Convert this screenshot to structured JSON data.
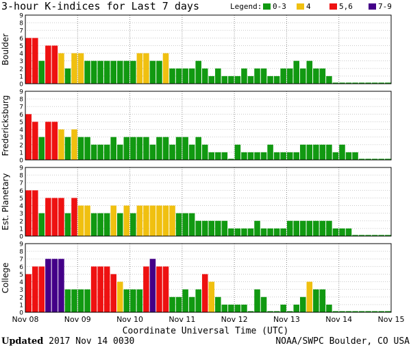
{
  "page": {
    "title": "3-hour K-indices for Last 7 days",
    "legend": {
      "label": "Legend:",
      "items": [
        {
          "label": "0-3",
          "color": "#119911"
        },
        {
          "label": "4",
          "color": "#f0c010"
        },
        {
          "label": "5,6",
          "color": "#ee1111"
        },
        {
          "label": "7-9",
          "color": "#440088"
        }
      ]
    },
    "footer": {
      "updated_label": "Updated",
      "updated_value": "2017 Nov 14 0030",
      "credit": "NOAA/SWPC Boulder, CO USA"
    }
  },
  "chart_data": {
    "type": "bar",
    "title": "3-hour K-indices for Last 7 days",
    "xlabel": "Coordinate Universal Time (UTC)",
    "x_ticks": [
      "Nov 08",
      "Nov 09",
      "Nov 10",
      "Nov 11",
      "Nov 12",
      "Nov 13",
      "Nov 14",
      "Nov 15"
    ],
    "ylim": [
      0,
      9
    ],
    "y_ticks": [
      0,
      1,
      2,
      3,
      4,
      5,
      6,
      7,
      8,
      9
    ],
    "interval_hours": 3,
    "color_scale": [
      {
        "range": "0-3",
        "color": "#119911"
      },
      {
        "range": "4",
        "color": "#f0c010"
      },
      {
        "range": "5,6",
        "color": "#ee1111"
      },
      {
        "range": "7-9",
        "color": "#440088"
      }
    ],
    "series": [
      {
        "name": "Boulder",
        "values": [
          6,
          6,
          3,
          5,
          5,
          4,
          2,
          4,
          4,
          3,
          3,
          3,
          3,
          3,
          3,
          3,
          3,
          4,
          4,
          3,
          3,
          4,
          2,
          2,
          2,
          2,
          3,
          2,
          1,
          2,
          1,
          1,
          1,
          2,
          1,
          2,
          2,
          1,
          1,
          2,
          2,
          3,
          2,
          3,
          2,
          2,
          1,
          0,
          0,
          0,
          0,
          0,
          0,
          0,
          0,
          0
        ]
      },
      {
        "name": "Fredericksburg",
        "values": [
          6,
          5,
          3,
          5,
          5,
          4,
          3,
          4,
          3,
          3,
          2,
          2,
          2,
          3,
          2,
          3,
          3,
          3,
          3,
          2,
          3,
          3,
          2,
          3,
          3,
          2,
          3,
          2,
          1,
          1,
          1,
          0,
          2,
          1,
          1,
          1,
          1,
          2,
          1,
          1,
          1,
          1,
          2,
          2,
          2,
          2,
          2,
          1,
          2,
          1,
          1,
          0,
          0,
          0,
          0,
          0
        ]
      },
      {
        "name": "Est. Planetary",
        "values": [
          6,
          6,
          3,
          5,
          5,
          5,
          3,
          5,
          4,
          4,
          3,
          3,
          3,
          4,
          3,
          4,
          3,
          4,
          4,
          4,
          4,
          4,
          4,
          3,
          3,
          3,
          2,
          2,
          2,
          2,
          2,
          1,
          1,
          1,
          1,
          2,
          1,
          1,
          1,
          1,
          2,
          2,
          2,
          2,
          2,
          2,
          2,
          1,
          1,
          1,
          0,
          0,
          0,
          0,
          0,
          0
        ]
      },
      {
        "name": "College",
        "values": [
          5,
          6,
          6,
          7,
          7,
          7,
          3,
          3,
          3,
          3,
          6,
          6,
          6,
          5,
          4,
          3,
          3,
          3,
          6,
          7,
          6,
          6,
          2,
          2,
          3,
          2,
          3,
          5,
          4,
          2,
          1,
          1,
          1,
          1,
          0,
          3,
          2,
          0,
          0,
          1,
          0,
          1,
          2,
          4,
          3,
          3,
          1,
          0,
          0,
          0,
          0,
          0,
          0,
          0,
          0,
          0
        ]
      }
    ]
  }
}
